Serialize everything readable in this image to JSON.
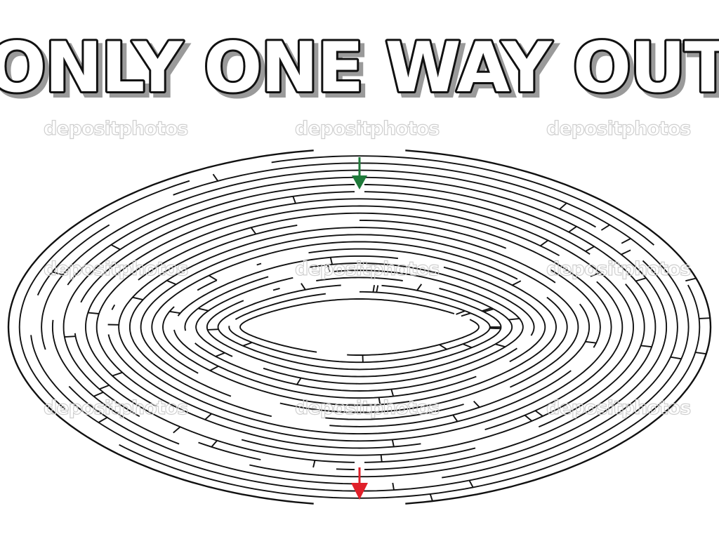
{
  "title": "ONLY ONE WAY OUT",
  "watermark": "depositphotos",
  "maze": {
    "entrance": "entrance-arrow",
    "exit": "exit-arrow",
    "colors": {
      "wall": "#111111",
      "background": "#ffffff",
      "entrance_arrow": "#1f7a3a",
      "exit_arrow": "#e0202a",
      "watermark": "#cfcfcf",
      "title_fill": "#ffffff",
      "title_outline": "#111111",
      "title_shadow": "#9a9a9a"
    }
  }
}
